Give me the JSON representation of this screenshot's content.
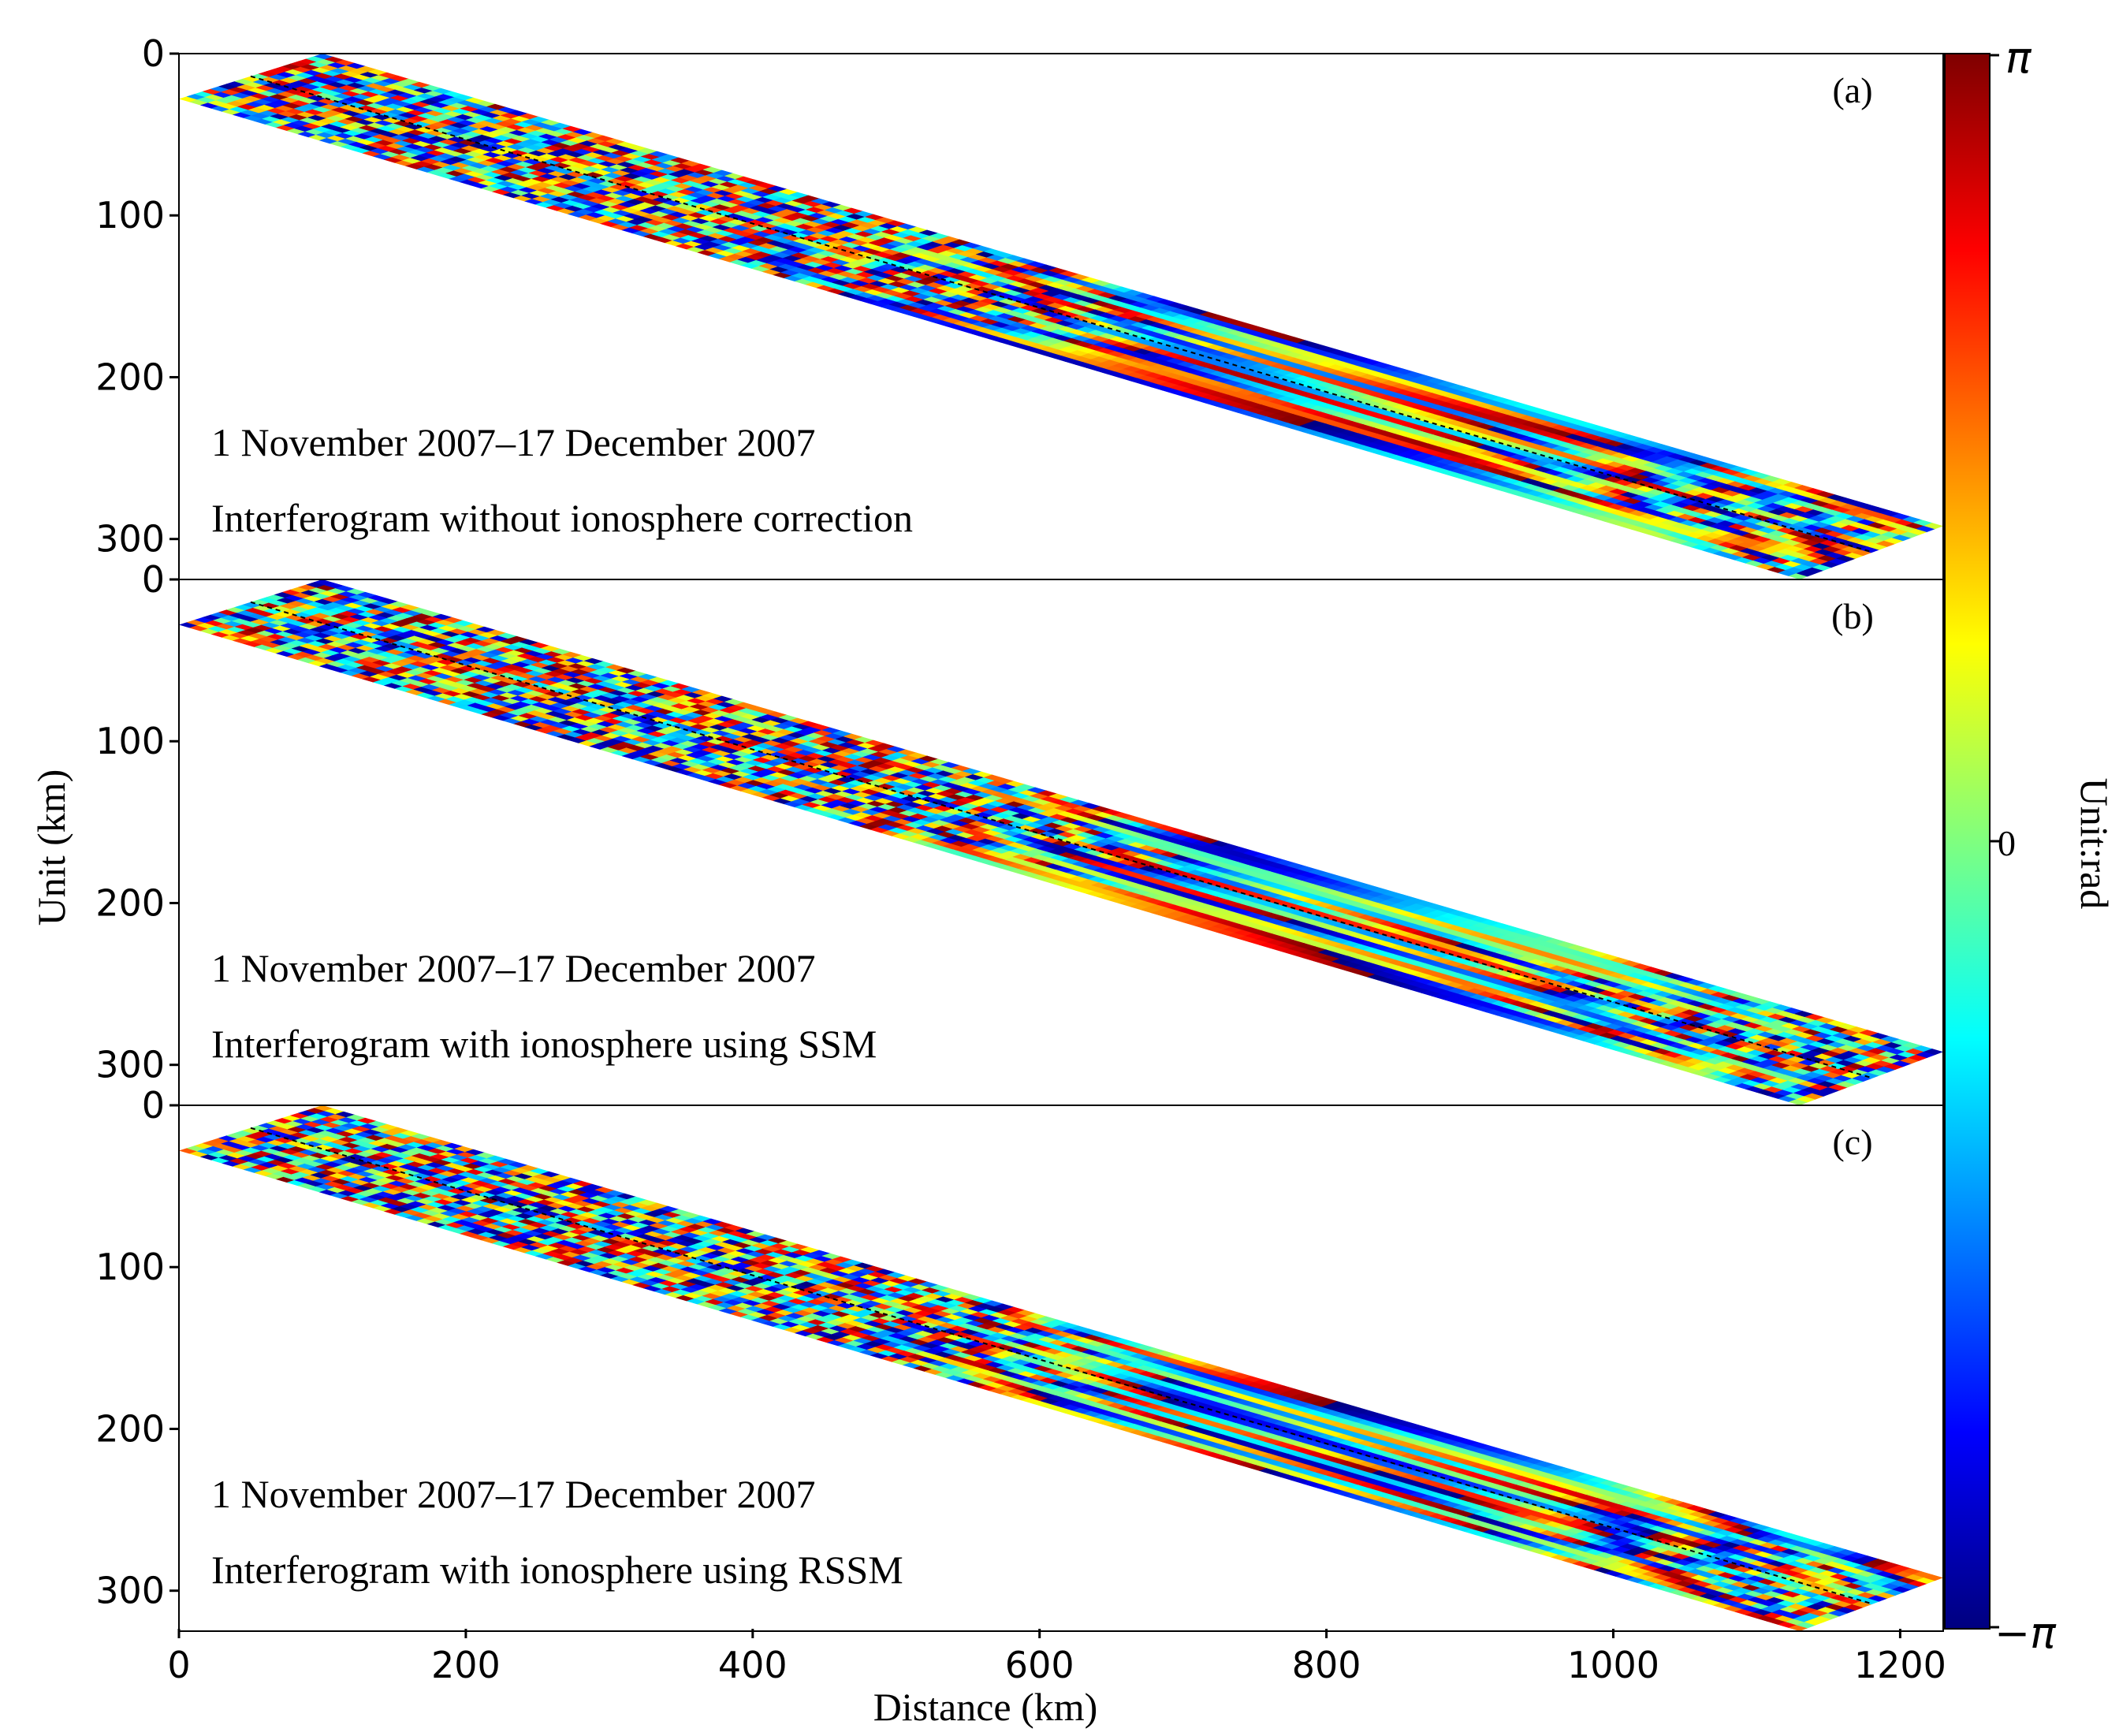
{
  "chart_data": [
    {
      "type": "heatmap",
      "panel_label": "(a)",
      "date_text": "1 November 2007–17 December 2007",
      "description_text": "Interferogram without ionosphere correction",
      "xlim": [
        0,
        1230
      ],
      "ylim": [
        0,
        325
      ],
      "xticks": [
        0,
        200,
        400,
        600,
        800,
        1000,
        1200
      ],
      "yticks": [
        0,
        100,
        200,
        300
      ],
      "strip_corners_km": [
        [
          0,
          28
        ],
        [
          100,
          0
        ],
        [
          1230,
          292
        ],
        [
          1130,
          325
        ]
      ],
      "center_line_km": [
        [
          50,
          14
        ],
        [
          1180,
          308
        ]
      ],
      "color_seed": 11,
      "fringe_density": "high near-range, lower far-range"
    },
    {
      "type": "heatmap",
      "panel_label": "(b)",
      "date_text": "1 November 2007–17 December 2007",
      "description_text": "Interferogram with ionosphere using SSM",
      "xlim": [
        0,
        1230
      ],
      "ylim": [
        0,
        325
      ],
      "xticks": [
        0,
        200,
        400,
        600,
        800,
        1000,
        1200
      ],
      "yticks": [
        0,
        100,
        200,
        300
      ],
      "strip_corners_km": [
        [
          0,
          28
        ],
        [
          100,
          0
        ],
        [
          1230,
          292
        ],
        [
          1130,
          325
        ]
      ],
      "center_line_km": [
        [
          50,
          14
        ],
        [
          1180,
          308
        ]
      ],
      "color_seed": 37,
      "fringe_density": "high near-range, lower far-range"
    },
    {
      "type": "heatmap",
      "panel_label": "(c)",
      "date_text": "1 November 2007–17 December 2007",
      "description_text": "Interferogram with ionosphere using RSSM",
      "xlim": [
        0,
        1230
      ],
      "ylim": [
        0,
        325
      ],
      "xticks": [
        0,
        200,
        400,
        600,
        800,
        1000,
        1200
      ],
      "yticks": [
        0,
        100,
        200,
        300
      ],
      "strip_corners_km": [
        [
          0,
          28
        ],
        [
          100,
          0
        ],
        [
          1230,
          292
        ],
        [
          1130,
          325
        ]
      ],
      "center_line_km": [
        [
          50,
          14
        ],
        [
          1180,
          308
        ]
      ],
      "color_seed": 73,
      "fringe_density": "high near-range, lower far-range"
    }
  ],
  "axes": {
    "xlabel": "Distance (km)",
    "ylabel": "Unit (km)"
  },
  "colorbar": {
    "label": "Unit:rad",
    "max_label": "π",
    "mid_label": "0",
    "min_label": "−π",
    "range": [
      -3.14159,
      3.14159
    ],
    "colormap": "jet",
    "stops": [
      "#00007f",
      "#0000ff",
      "#007fff",
      "#00ffff",
      "#7fff7f",
      "#ffff00",
      "#ff7f00",
      "#ff0000",
      "#7f0000"
    ]
  }
}
